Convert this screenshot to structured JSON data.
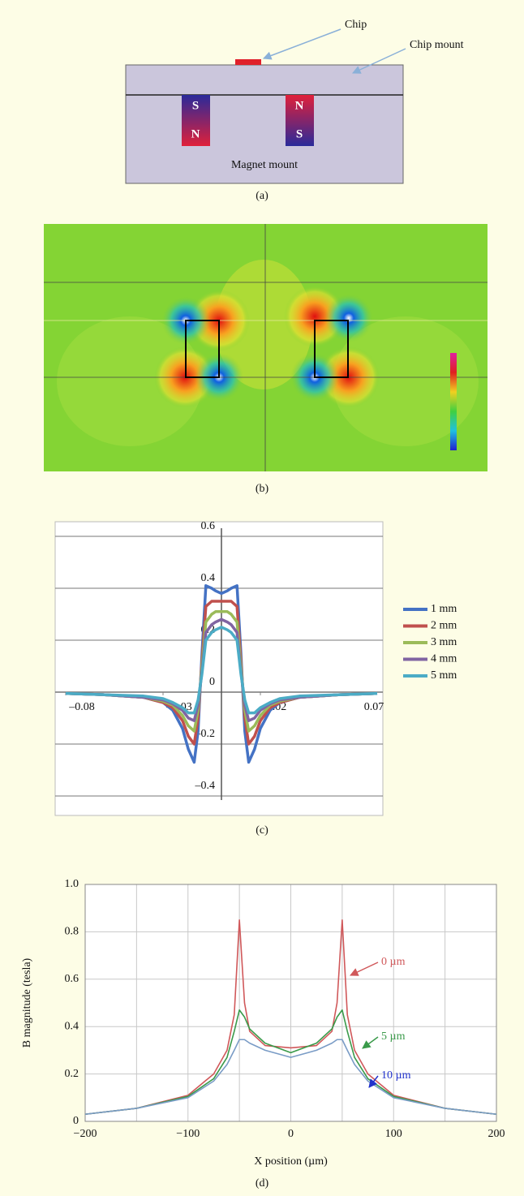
{
  "diagram_a": {
    "chip": "Chip",
    "chip_mount": "Chip mount",
    "magnet_mount": "Magnet mount",
    "left_magnet_top": "S",
    "left_magnet_bottom": "N",
    "right_magnet_top": "N",
    "right_magnet_bottom": "S",
    "caption": "(a)"
  },
  "field_map_b": {
    "caption": "(b)"
  },
  "chart_data": [
    {
      "type": "line",
      "caption": "(c)",
      "x": [
        -0.08,
        -0.06,
        -0.04,
        -0.03,
        -0.025,
        -0.02,
        -0.017,
        -0.014,
        -0.012,
        -0.01,
        -0.008,
        -0.005,
        -0.003,
        0,
        0.003,
        0.005,
        0.008,
        0.01,
        0.012,
        0.014,
        0.017,
        0.02,
        0.025,
        0.03,
        0.04,
        0.06,
        0.08
      ],
      "xlim": [
        -0.08,
        0.08
      ],
      "xticks": [
        {
          "value": -0.08,
          "label": "–0.08"
        },
        {
          "value": -0.03,
          "label": "–0.03"
        },
        0.02,
        0.07
      ],
      "ylim": [
        -0.4,
        0.6
      ],
      "yticks": [
        {
          "value": -0.4,
          "label": "–0.4"
        },
        {
          "value": -0.2,
          "label": "–0.2"
        },
        0,
        0.2,
        0.4,
        0.6
      ],
      "grid": true,
      "legend": "right",
      "series": [
        {
          "name": "1 mm",
          "color": "#4472c4",
          "values": [
            -0.005,
            -0.01,
            -0.02,
            -0.04,
            -0.07,
            -0.14,
            -0.22,
            -0.27,
            -0.15,
            0.15,
            0.41,
            0.4,
            0.39,
            0.38,
            0.39,
            0.4,
            0.41,
            0.15,
            -0.15,
            -0.27,
            -0.22,
            -0.14,
            -0.07,
            -0.04,
            -0.02,
            -0.01,
            -0.005
          ]
        },
        {
          "name": "2 mm",
          "color": "#c0504d",
          "values": [
            -0.005,
            -0.01,
            -0.02,
            -0.04,
            -0.06,
            -0.11,
            -0.17,
            -0.2,
            -0.1,
            0.12,
            0.33,
            0.35,
            0.35,
            0.35,
            0.35,
            0.35,
            0.33,
            0.12,
            -0.1,
            -0.2,
            -0.17,
            -0.11,
            -0.06,
            -0.04,
            -0.02,
            -0.01,
            -0.005
          ]
        },
        {
          "name": "3 mm",
          "color": "#9bbb59",
          "values": [
            -0.005,
            -0.01,
            -0.02,
            -0.035,
            -0.05,
            -0.09,
            -0.13,
            -0.15,
            -0.07,
            0.1,
            0.27,
            0.3,
            0.31,
            0.31,
            0.31,
            0.3,
            0.27,
            0.1,
            -0.07,
            -0.15,
            -0.13,
            -0.09,
            -0.05,
            -0.035,
            -0.02,
            -0.01,
            -0.005
          ]
        },
        {
          "name": "4 mm",
          "color": "#8064a2",
          "values": [
            -0.005,
            -0.01,
            -0.02,
            -0.03,
            -0.045,
            -0.07,
            -0.1,
            -0.11,
            -0.05,
            0.08,
            0.23,
            0.26,
            0.27,
            0.28,
            0.27,
            0.26,
            0.23,
            0.08,
            -0.05,
            -0.11,
            -0.1,
            -0.07,
            -0.045,
            -0.03,
            -0.02,
            -0.01,
            -0.005
          ]
        },
        {
          "name": "5 mm",
          "color": "#4bacc6",
          "values": [
            -0.005,
            -0.01,
            -0.015,
            -0.025,
            -0.04,
            -0.06,
            -0.08,
            -0.08,
            -0.03,
            0.07,
            0.2,
            0.23,
            0.24,
            0.25,
            0.24,
            0.23,
            0.2,
            0.07,
            -0.03,
            -0.08,
            -0.08,
            -0.06,
            -0.04,
            -0.025,
            -0.015,
            -0.01,
            -0.005
          ]
        }
      ]
    },
    {
      "type": "line",
      "caption": "(d)",
      "xlabel": "X position (µm)",
      "ylabel": "B magnitude (tesla)",
      "x": [
        -200,
        -150,
        -100,
        -75,
        -62,
        -55,
        -50,
        -45,
        -40,
        -25,
        0,
        25,
        40,
        45,
        50,
        55,
        62,
        75,
        100,
        150,
        200
      ],
      "xlim": [
        -200,
        200
      ],
      "xticks": [
        {
          "value": -200,
          "label": "−200"
        },
        {
          "value": -100,
          "label": "−100"
        },
        0,
        100,
        200
      ],
      "x_minor_gridlines": [
        -150,
        -50,
        50,
        150
      ],
      "ylim": [
        0,
        1
      ],
      "yticks": [
        0,
        0.2,
        0.4,
        0.6,
        0.8,
        {
          "value": 1,
          "label": "1.0"
        }
      ],
      "grid": true,
      "series": [
        {
          "name": "0 µm",
          "color": "#d0585a",
          "values": [
            0.03,
            0.055,
            0.11,
            0.2,
            0.3,
            0.45,
            0.85,
            0.5,
            0.38,
            0.32,
            0.31,
            0.32,
            0.38,
            0.5,
            0.85,
            0.45,
            0.3,
            0.2,
            0.11,
            0.055,
            0.03
          ]
        },
        {
          "name": "5 µm",
          "color": "#3a9a4a",
          "values": [
            0.03,
            0.055,
            0.105,
            0.18,
            0.27,
            0.38,
            0.47,
            0.44,
            0.39,
            0.33,
            0.29,
            0.33,
            0.39,
            0.44,
            0.47,
            0.38,
            0.27,
            0.18,
            0.105,
            0.055,
            0.03
          ]
        },
        {
          "name": "10 µm",
          "color": "#7a9cc6",
          "label_color": "#2233cc",
          "values": [
            0.03,
            0.055,
            0.1,
            0.17,
            0.24,
            0.3,
            0.345,
            0.345,
            0.33,
            0.3,
            0.27,
            0.3,
            0.33,
            0.345,
            0.345,
            0.3,
            0.24,
            0.17,
            0.1,
            0.055,
            0.03
          ]
        }
      ]
    }
  ]
}
